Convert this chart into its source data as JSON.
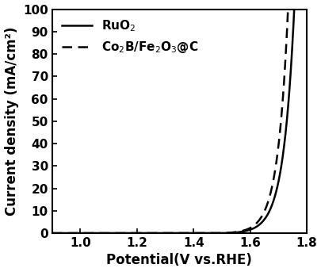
{
  "title": "",
  "xlabel": "Potential(V vs.RHE)",
  "ylabel": "Current density (mA/cm²)",
  "xlim": [
    0.9,
    1.8
  ],
  "ylim": [
    0,
    100
  ],
  "xticks": [
    1.0,
    1.2,
    1.4,
    1.6,
    1.8
  ],
  "yticks": [
    0,
    10,
    20,
    30,
    40,
    50,
    60,
    70,
    80,
    90,
    100
  ],
  "line_color": "#000000",
  "background_color": "#ffffff",
  "legend_labels": [
    "RuO$_2$",
    "Co$_2$B/Fe$_2$O$_3$@C"
  ],
  "ruo2_onset": 1.5,
  "ruo2_scale": 0.038,
  "ruo2_amplitude": 0.12,
  "co2b_onset": 1.485,
  "co2b_scale": 0.036,
  "co2b_amplitude": 0.1,
  "xlabel_fontsize": 12,
  "ylabel_fontsize": 12,
  "tick_fontsize": 11,
  "legend_fontsize": 11
}
